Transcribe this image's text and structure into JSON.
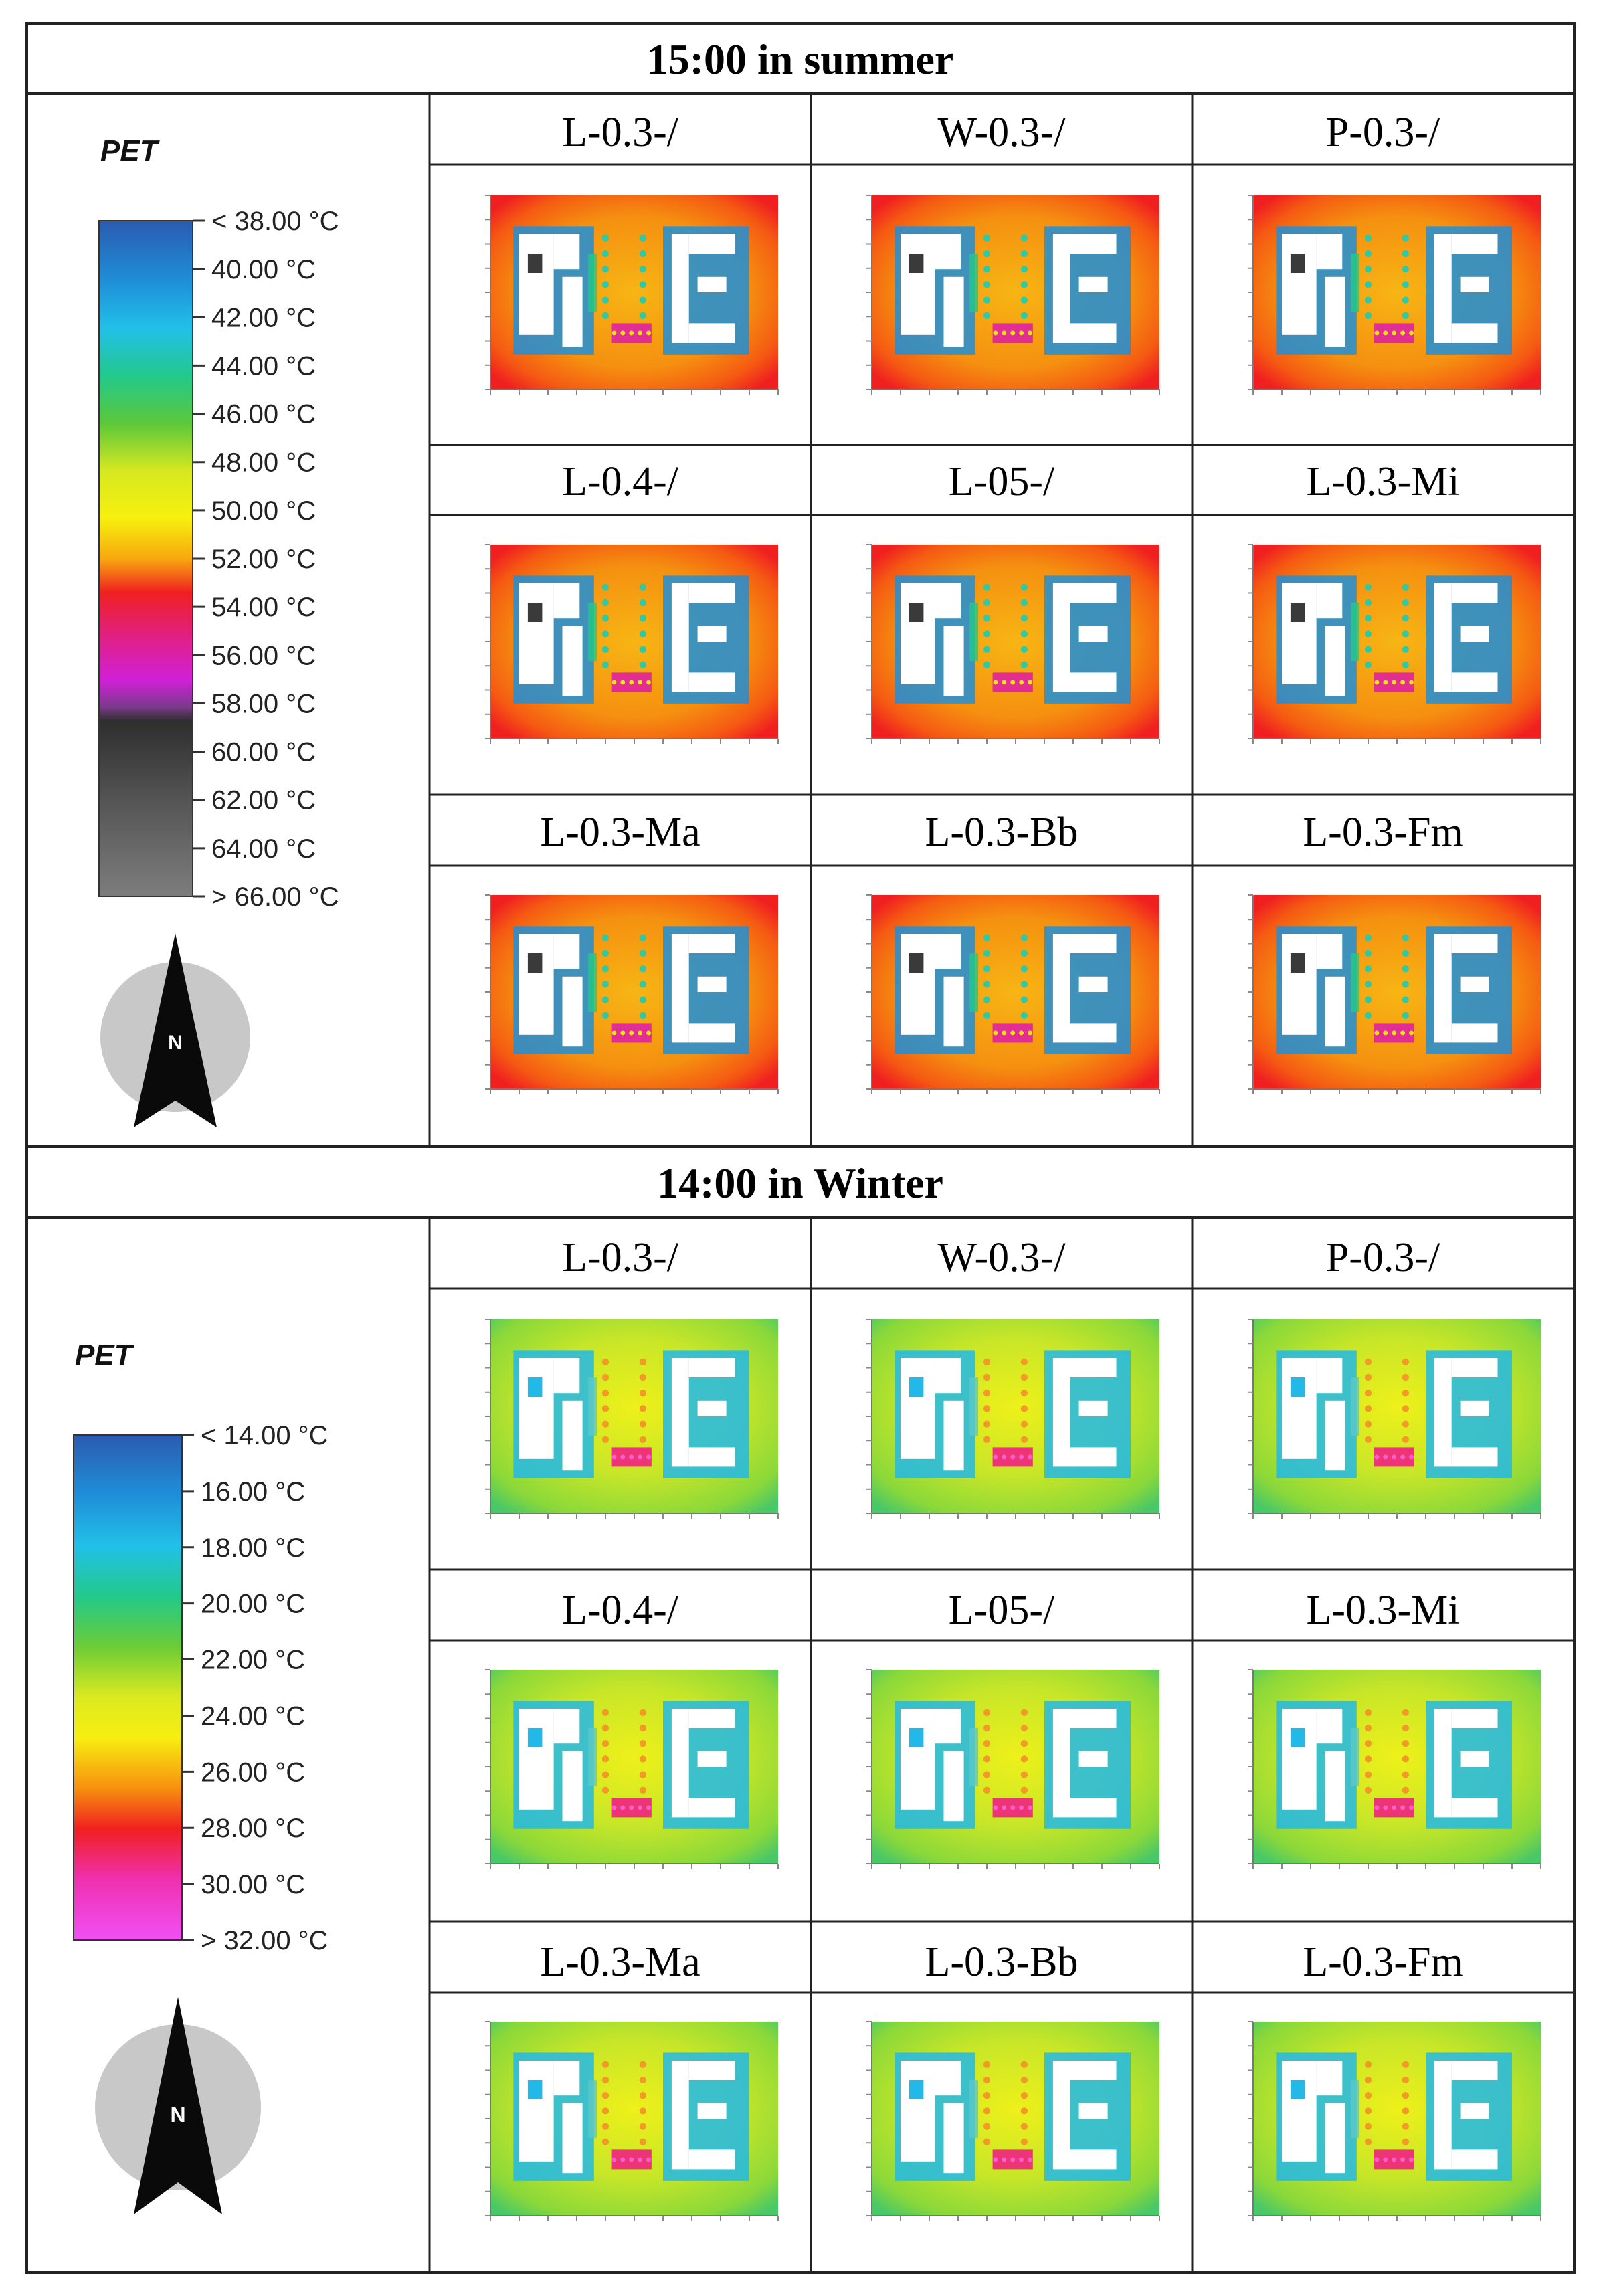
{
  "sections": [
    {
      "title": "15:00 in summer",
      "legend": {
        "label": "PET",
        "ticks": [
          "< 38.00 °C",
          "40.00  °C",
          "42.00  °C",
          "44.00  °C",
          "46.00  °C",
          "48.00  °C",
          "50.00  °C",
          "52.00  °C",
          "54.00  °C",
          "56.00  °C",
          "58.00  °C",
          "60.00  °C",
          "62.00  °C",
          "64.00  °C",
          "> 66.00 °C"
        ],
        "colors": [
          "#2a5bb0",
          "#1f8fd8",
          "#22c0e8",
          "#22c98a",
          "#5cc83a",
          "#c8e620",
          "#f5ee10",
          "#f7b80e",
          "#f55a10",
          "#f01828",
          "#e0208a",
          "#d020d8",
          "#8a4a9a",
          "#2e2e2e",
          "#555555",
          "#7a7a7a"
        ]
      },
      "cells": [
        "L-0.3-/",
        "W-0.3-/",
        "P-0.3-/",
        "L-0.4-/",
        "L-05-/",
        "L-0.3-Mi",
        "L-0.3-Ma",
        "L-0.3-Bb",
        "L-0.3-Fm"
      ],
      "north_label": "N"
    },
    {
      "title": "14:00 in Winter",
      "legend": {
        "label": "PET",
        "ticks": [
          "< 14.00 °C",
          "16.00  °C",
          "18.00  °C",
          "20.00  °C",
          "22.00  °C",
          "24.00  °C",
          "26.00  °C",
          "28.00  °C",
          "30.00  °C",
          "> 32.00 °C"
        ],
        "colors": [
          "#2a5bb0",
          "#1f8fd8",
          "#22c0e8",
          "#22c98a",
          "#5cc83a",
          "#c8e620",
          "#f5ee10",
          "#f7a20e",
          "#f04a10",
          "#f01030",
          "#f030c0",
          "#f040f0"
        ]
      },
      "cells": [
        "L-0.3-/",
        "W-0.3-/",
        "P-0.3-/",
        "L-0.4-/",
        "L-05-/",
        "L-0.3-Mi",
        "L-0.3-Ma",
        "L-0.3-Bb",
        "L-0.3-Fm"
      ],
      "north_label": "N"
    }
  ]
}
